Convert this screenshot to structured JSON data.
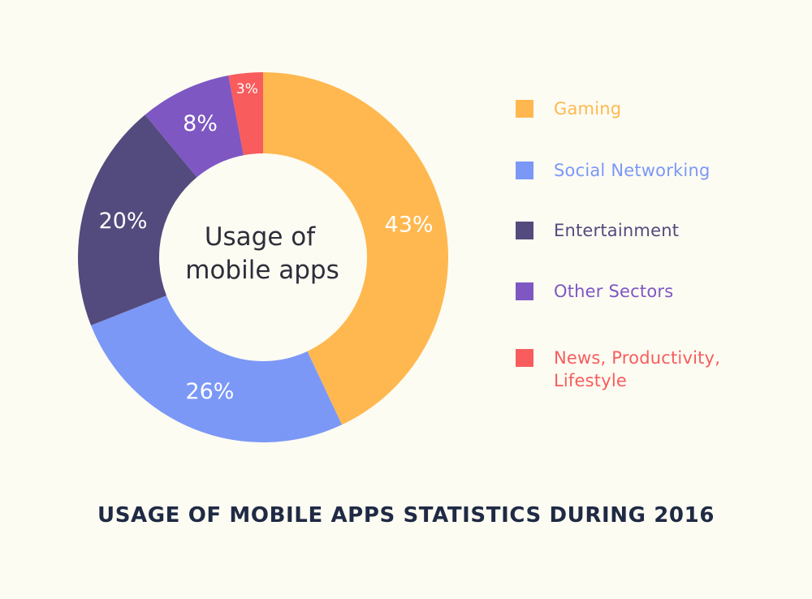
{
  "chart_data": {
    "type": "pie",
    "variant": "donut",
    "title": "USAGE OF MOBILE APPS STATISTICS DURING 2016",
    "center_label_lines": [
      "Usage of",
      "mobile apps"
    ],
    "legend_position": "right",
    "slices": [
      {
        "name": "Gaming",
        "value": 43,
        "label": "43%",
        "color": "#ffb84f"
      },
      {
        "name": "Social Networking",
        "value": 26,
        "label": "26%",
        "color": "#7b98f6"
      },
      {
        "name": "Entertainment",
        "value": 20,
        "label": "20%",
        "color": "#534b7d"
      },
      {
        "name": "Other Sectors",
        "value": 8,
        "label": "8%",
        "color": "#7e57c2"
      },
      {
        "name": "News, Productivity,\nLifestyle",
        "value": 3,
        "label": "3%",
        "color": "#f85c5c"
      }
    ]
  }
}
